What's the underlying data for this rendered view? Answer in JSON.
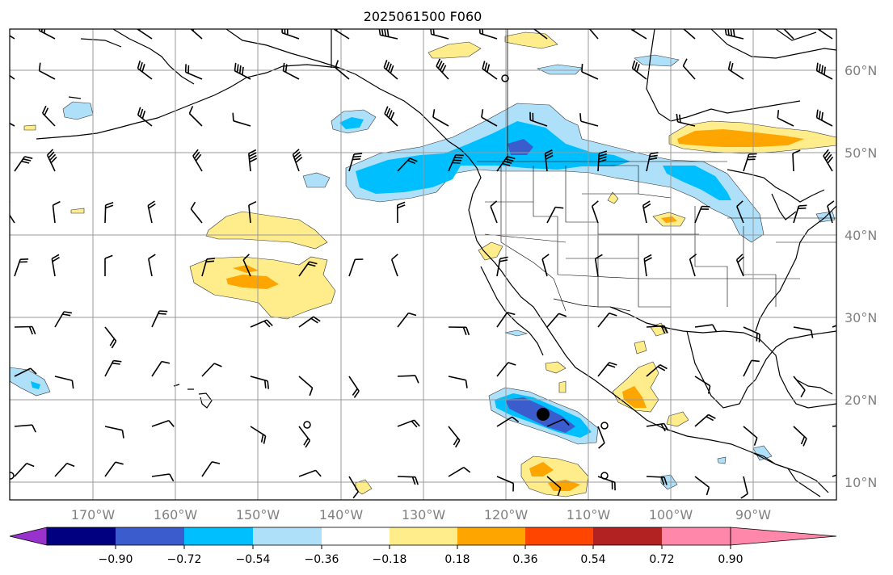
{
  "title": "2025061500 F060",
  "map": {
    "lon_labels": [
      "170°W",
      "160°W",
      "150°W",
      "140°W",
      "130°W",
      "120°W",
      "110°W",
      "100°W",
      "90°W"
    ],
    "lat_labels": [
      "60°N",
      "50°N",
      "40°N",
      "30°N",
      "20°N",
      "10°N"
    ],
    "extent": {
      "lon_min": -180,
      "lon_max": -80,
      "lat_min": 8,
      "lat_max": 65
    },
    "gridlines": true,
    "features": [
      "coastlines",
      "country borders",
      "US state borders",
      "wind barbs",
      "filled contours",
      "storm center marker"
    ]
  },
  "colorbar": {
    "orientation": "horizontal",
    "extend": "both",
    "tick_labels": [
      "−0.90",
      "−0.72",
      "−0.54",
      "−0.36",
      "−0.18",
      "0.18",
      "0.36",
      "0.54",
      "0.72",
      "0.90"
    ],
    "colors": {
      "under": "#9932cc",
      "bins": [
        "#000080",
        "#3a5ccc",
        "#00bfff",
        "#aee0fa",
        "#ffffff",
        "#ffec8b",
        "#ffa500",
        "#ff4500",
        "#b22222"
      ],
      "over": "#ff88aa"
    }
  },
  "colors": {
    "neg_weak": "#aee0fa",
    "neg_mod": "#00bfff",
    "neg_strong": "#3a5ccc",
    "pos_weak": "#ffec8b",
    "pos_mod": "#ffa500",
    "grid": "#999999",
    "land_line": "#000000"
  }
}
